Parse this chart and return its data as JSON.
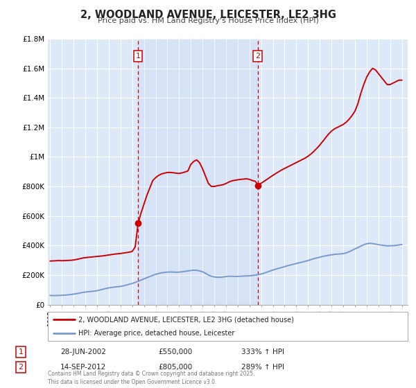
{
  "title": "2, WOODLAND AVENUE, LEICESTER, LE2 3HG",
  "subtitle": "Price paid vs. HM Land Registry's House Price Index (HPI)",
  "background_color": "#ffffff",
  "plot_bg_color": "#dde8f8",
  "grid_color": "#ffffff",
  "red_line_color": "#cc0000",
  "blue_line_color": "#7799cc",
  "sale1_x": 2002.5,
  "sale1_y": 550000,
  "sale1_label": "1",
  "sale1_date": "28-JUN-2002",
  "sale1_price": "£550,000",
  "sale1_hpi": "333% ↑ HPI",
  "sale2_x": 2012.71,
  "sale2_y": 805000,
  "sale2_label": "2",
  "sale2_date": "14-SEP-2012",
  "sale2_price": "£805,000",
  "sale2_hpi": "289% ↑ HPI",
  "xmin": 1994.8,
  "xmax": 2025.5,
  "ymin": 0,
  "ymax": 1800000,
  "yticks": [
    0,
    200000,
    400000,
    600000,
    800000,
    1000000,
    1200000,
    1400000,
    1600000,
    1800000
  ],
  "ytick_labels": [
    "£0",
    "£200K",
    "£400K",
    "£600K",
    "£800K",
    "£1M",
    "£1.2M",
    "£1.4M",
    "£1.6M",
    "£1.8M"
  ],
  "xticks": [
    1995,
    1996,
    1997,
    1998,
    1999,
    2000,
    2001,
    2002,
    2003,
    2004,
    2005,
    2006,
    2007,
    2008,
    2009,
    2010,
    2011,
    2012,
    2013,
    2014,
    2015,
    2016,
    2017,
    2018,
    2019,
    2020,
    2021,
    2022,
    2023,
    2024,
    2025
  ],
  "legend_label_red": "2, WOODLAND AVENUE, LEICESTER, LE2 3HG (detached house)",
  "legend_label_blue": "HPI: Average price, detached house, Leicester",
  "footer": "Contains HM Land Registry data © Crown copyright and database right 2025.\nThis data is licensed under the Open Government Licence v3.0.",
  "hpi_data": {
    "years": [
      1995.0,
      1995.25,
      1995.5,
      1995.75,
      1996.0,
      1996.25,
      1996.5,
      1996.75,
      1997.0,
      1997.25,
      1997.5,
      1997.75,
      1998.0,
      1998.25,
      1998.5,
      1998.75,
      1999.0,
      1999.25,
      1999.5,
      1999.75,
      2000.0,
      2000.25,
      2000.5,
      2000.75,
      2001.0,
      2001.25,
      2001.5,
      2001.75,
      2002.0,
      2002.25,
      2002.5,
      2002.75,
      2003.0,
      2003.25,
      2003.5,
      2003.75,
      2004.0,
      2004.25,
      2004.5,
      2004.75,
      2005.0,
      2005.25,
      2005.5,
      2005.75,
      2006.0,
      2006.25,
      2006.5,
      2006.75,
      2007.0,
      2007.25,
      2007.5,
      2007.75,
      2008.0,
      2008.25,
      2008.5,
      2008.75,
      2009.0,
      2009.25,
      2009.5,
      2009.75,
      2010.0,
      2010.25,
      2010.5,
      2010.75,
      2011.0,
      2011.25,
      2011.5,
      2011.75,
      2012.0,
      2012.25,
      2012.5,
      2012.75,
      2013.0,
      2013.25,
      2013.5,
      2013.75,
      2014.0,
      2014.25,
      2014.5,
      2014.75,
      2015.0,
      2015.25,
      2015.5,
      2015.75,
      2016.0,
      2016.25,
      2016.5,
      2016.75,
      2017.0,
      2017.25,
      2017.5,
      2017.75,
      2018.0,
      2018.25,
      2018.5,
      2018.75,
      2019.0,
      2019.25,
      2019.5,
      2019.75,
      2020.0,
      2020.25,
      2020.5,
      2020.75,
      2021.0,
      2021.25,
      2021.5,
      2021.75,
      2022.0,
      2022.25,
      2022.5,
      2022.75,
      2023.0,
      2023.25,
      2023.5,
      2023.75,
      2024.0,
      2024.25,
      2024.5,
      2024.75,
      2025.0
    ],
    "values": [
      62000,
      61000,
      61500,
      62000,
      63000,
      64000,
      66000,
      68000,
      71000,
      74000,
      78000,
      82000,
      85000,
      87000,
      89000,
      91000,
      94000,
      99000,
      104000,
      109000,
      113000,
      116000,
      119000,
      121000,
      123000,
      127000,
      132000,
      138000,
      143000,
      150000,
      158000,
      166000,
      174000,
      182000,
      190000,
      198000,
      205000,
      210000,
      215000,
      218000,
      220000,
      221000,
      220000,
      219000,
      220000,
      222000,
      225000,
      228000,
      231000,
      233000,
      232000,
      228000,
      222000,
      212000,
      200000,
      192000,
      187000,
      185000,
      185000,
      187000,
      190000,
      192000,
      192000,
      191000,
      191000,
      192000,
      193000,
      194000,
      195000,
      197000,
      200000,
      203000,
      207000,
      213000,
      220000,
      227000,
      234000,
      240000,
      246000,
      251000,
      257000,
      263000,
      268000,
      273000,
      278000,
      283000,
      288000,
      293000,
      298000,
      305000,
      311000,
      316000,
      321000,
      326000,
      330000,
      334000,
      337000,
      340000,
      342000,
      343000,
      345000,
      350000,
      358000,
      367000,
      377000,
      386000,
      396000,
      405000,
      412000,
      415000,
      413000,
      410000,
      406000,
      403000,
      400000,
      398000,
      398000,
      399000,
      401000,
      404000,
      407000
    ]
  },
  "property_data": {
    "years": [
      1995.0,
      1995.25,
      1995.5,
      1995.75,
      1996.0,
      1996.25,
      1996.5,
      1996.75,
      1997.0,
      1997.25,
      1997.5,
      1997.75,
      1998.0,
      1998.25,
      1998.5,
      1998.75,
      1999.0,
      1999.25,
      1999.5,
      1999.75,
      2000.0,
      2000.25,
      2000.5,
      2000.75,
      2001.0,
      2001.25,
      2001.5,
      2001.75,
      2002.0,
      2002.25,
      2002.5,
      2002.75,
      2003.0,
      2003.25,
      2003.5,
      2003.75,
      2004.0,
      2004.25,
      2004.5,
      2004.75,
      2005.0,
      2005.25,
      2005.5,
      2005.75,
      2006.0,
      2006.25,
      2006.5,
      2006.75,
      2007.0,
      2007.25,
      2007.5,
      2007.75,
      2008.0,
      2008.25,
      2008.5,
      2008.75,
      2009.0,
      2009.25,
      2009.5,
      2009.75,
      2010.0,
      2010.25,
      2010.5,
      2010.75,
      2011.0,
      2011.25,
      2011.5,
      2011.75,
      2012.0,
      2012.25,
      2012.5,
      2012.75,
      2013.0,
      2013.25,
      2013.5,
      2013.75,
      2014.0,
      2014.25,
      2014.5,
      2014.75,
      2015.0,
      2015.25,
      2015.5,
      2015.75,
      2016.0,
      2016.25,
      2016.5,
      2016.75,
      2017.0,
      2017.25,
      2017.5,
      2017.75,
      2018.0,
      2018.25,
      2018.5,
      2018.75,
      2019.0,
      2019.25,
      2019.5,
      2019.75,
      2020.0,
      2020.25,
      2020.5,
      2020.75,
      2021.0,
      2021.25,
      2021.5,
      2021.75,
      2022.0,
      2022.25,
      2022.5,
      2022.75,
      2023.0,
      2023.25,
      2023.5,
      2023.75,
      2024.0,
      2024.25,
      2024.5,
      2024.75,
      2025.0
    ],
    "values": [
      295000,
      296000,
      297000,
      298000,
      297000,
      298000,
      299000,
      300000,
      302000,
      306000,
      310000,
      315000,
      318000,
      320000,
      322000,
      324000,
      326000,
      328000,
      330000,
      333000,
      336000,
      339000,
      342000,
      344000,
      346000,
      349000,
      352000,
      355000,
      360000,
      390000,
      550000,
      620000,
      680000,
      740000,
      790000,
      840000,
      860000,
      875000,
      885000,
      890000,
      895000,
      895000,
      893000,
      890000,
      888000,
      892000,
      898000,
      905000,
      950000,
      970000,
      980000,
      960000,
      920000,
      870000,
      820000,
      800000,
      800000,
      805000,
      808000,
      812000,
      820000,
      830000,
      838000,
      842000,
      845000,
      848000,
      850000,
      852000,
      848000,
      840000,
      835000,
      808000,
      822000,
      835000,
      848000,
      862000,
      875000,
      888000,
      900000,
      912000,
      922000,
      932000,
      942000,
      952000,
      962000,
      972000,
      982000,
      992000,
      1005000,
      1020000,
      1038000,
      1058000,
      1080000,
      1105000,
      1130000,
      1155000,
      1175000,
      1190000,
      1200000,
      1210000,
      1220000,
      1235000,
      1255000,
      1280000,
      1310000,
      1360000,
      1430000,
      1490000,
      1540000,
      1575000,
      1600000,
      1590000,
      1565000,
      1540000,
      1515000,
      1490000,
      1490000,
      1500000,
      1510000,
      1520000,
      1520000
    ]
  }
}
